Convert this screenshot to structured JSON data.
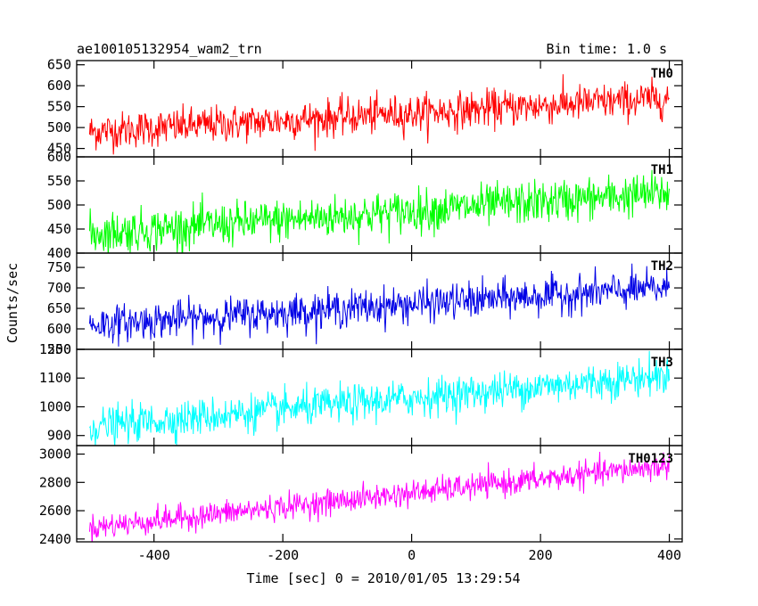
{
  "header": {
    "title": "ae100105132954_wam2_trn",
    "bin_time": "Bin time: 1.0 s"
  },
  "chart_data": {
    "type": "line",
    "xlabel": "Time [sec] 0 = 2010/01/05 13:29:54",
    "ylabel": "Counts/sec",
    "xlim": [
      -520,
      420
    ],
    "x_ticks": [
      -400,
      -200,
      0,
      200,
      400
    ],
    "x_range": [
      -500,
      400
    ],
    "bin_time_s": 1.0,
    "panels": [
      {
        "name": "TH0",
        "color": "#ff0000",
        "ylim": [
          430,
          660
        ],
        "y_ticks": [
          450,
          500,
          550,
          600,
          650
        ],
        "trend_start": 490,
        "trend_end": 570,
        "noise": 22
      },
      {
        "name": "TH1",
        "color": "#00ff00",
        "ylim": [
          400,
          600
        ],
        "y_ticks": [
          400,
          450,
          500,
          550,
          600
        ],
        "trend_start": 440,
        "trend_end": 525,
        "noise": 22
      },
      {
        "name": "TH2",
        "color": "#0000e6",
        "ylim": [
          550,
          785
        ],
        "y_ticks": [
          550,
          600,
          650,
          700,
          750
        ],
        "trend_start": 610,
        "trend_end": 700,
        "noise": 22
      },
      {
        "name": "TH3",
        "color": "#00ffff",
        "ylim": [
          865,
          1200
        ],
        "y_ticks": [
          900,
          1000,
          1100,
          1200
        ],
        "trend_start": 930,
        "trend_end": 1110,
        "noise": 32
      },
      {
        "name": "TH0123",
        "color": "#ff00ff",
        "ylim": [
          2380,
          3060
        ],
        "y_ticks": [
          2400,
          2600,
          2800,
          3000
        ],
        "trend_start": 2480,
        "trend_end": 2920,
        "noise": 45
      }
    ]
  }
}
